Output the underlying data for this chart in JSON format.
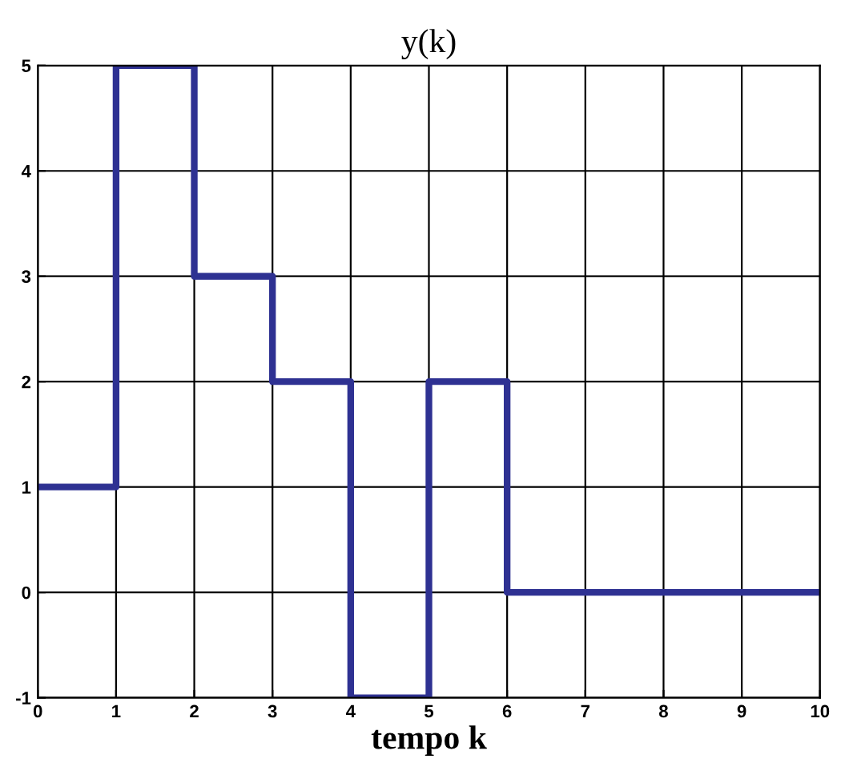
{
  "chart_data": {
    "type": "step",
    "title": "y(k)",
    "xlabel": "tempo k",
    "x": [
      0,
      1,
      2,
      3,
      4,
      5,
      6,
      7,
      8,
      9,
      10
    ],
    "series": [
      {
        "color": "#2e3192",
        "values": [
          1,
          5,
          3,
          2,
          -1,
          2,
          0,
          0,
          0,
          0,
          0
        ]
      }
    ],
    "xlim": [
      0,
      10
    ],
    "ylim": [
      -1,
      5
    ],
    "xticks": [
      0,
      1,
      2,
      3,
      4,
      5,
      6,
      7,
      8,
      9,
      10
    ],
    "yticks": [
      -1,
      0,
      1,
      2,
      3,
      4,
      5
    ],
    "grid": true,
    "line_style": "solid",
    "marker": "none",
    "legend": false
  }
}
